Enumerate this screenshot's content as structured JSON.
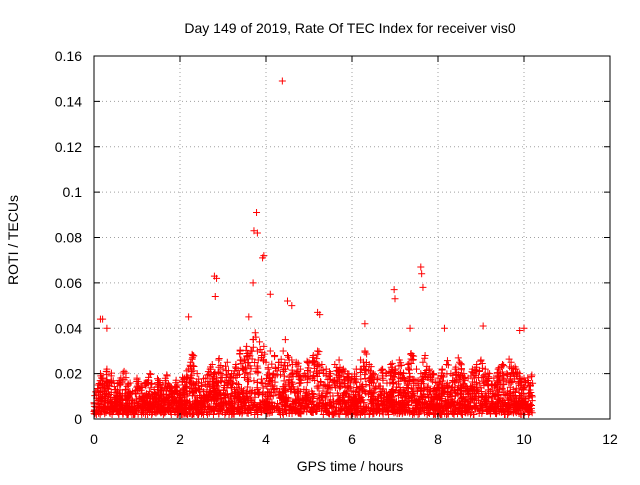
{
  "chart_data": {
    "type": "scatter",
    "title": "Day 149 of 2019, Rate Of TEC Index for receiver vis0",
    "xlabel": "GPS time / hours",
    "ylabel": "ROTI / TECUs",
    "xlim": [
      0,
      12
    ],
    "ylim": [
      0,
      0.16
    ],
    "x_ticks": [
      0,
      2,
      4,
      6,
      8,
      10,
      12
    ],
    "x_tick_labels": [
      "0",
      "2",
      "4",
      "6",
      "8",
      "10",
      "12"
    ],
    "y_ticks": [
      0,
      0.02,
      0.04,
      0.06,
      0.08,
      0.1,
      0.12,
      0.14,
      0.16
    ],
    "y_tick_labels": [
      "0",
      "0.02",
      "0.04",
      "0.06",
      "0.08",
      "0.1",
      "0.12",
      "0.14",
      "0.16"
    ],
    "grid": true,
    "marker": "+",
    "colors": {
      "series": "#ff0000",
      "axes": "#000000",
      "grid": "#a0a0a0",
      "background": "#ffffff"
    },
    "series": [
      {
        "name": "vis0",
        "description": "Dense band of ROTI values mostly 0.002-0.03 TECUs from 0 to ~10.2 h, with excursions listed below",
        "x": [
          0.05,
          0.1,
          0.15,
          0.2,
          0.25,
          0.3,
          0.35,
          0.4,
          0.5,
          0.6,
          0.7,
          0.8,
          0.9,
          1.0,
          1.1,
          1.2,
          1.3,
          1.4,
          1.5,
          1.6,
          1.7,
          1.8,
          1.9,
          2.0,
          2.1,
          2.2,
          2.25,
          2.3,
          2.4,
          2.5,
          2.6,
          2.7,
          2.75,
          2.8,
          2.85,
          2.9,
          3.0,
          3.1,
          3.2,
          3.3,
          3.4,
          3.5,
          3.55,
          3.6,
          3.65,
          3.7,
          3.75,
          3.8,
          3.82,
          3.85,
          3.9,
          3.95,
          4.0,
          4.05,
          4.1,
          4.2,
          4.3,
          4.4,
          4.45,
          4.5,
          4.6,
          4.7,
          4.8,
          4.9,
          5.0,
          5.1,
          5.2,
          5.3,
          5.4,
          5.5,
          5.6,
          5.7,
          5.8,
          5.9,
          6.0,
          6.1,
          6.2,
          6.3,
          6.4,
          6.5,
          6.6,
          6.7,
          6.8,
          6.9,
          7.0,
          7.1,
          7.2,
          7.3,
          7.4,
          7.5,
          7.6,
          7.65,
          7.7,
          7.8,
          7.9,
          8.0,
          8.1,
          8.2,
          8.3,
          8.4,
          8.5,
          8.6,
          8.7,
          8.8,
          8.9,
          9.0,
          9.1,
          9.2,
          9.3,
          9.4,
          9.5,
          9.6,
          9.7,
          9.8,
          9.9,
          10.0,
          10.1,
          10.15,
          4.38,
          3.78,
          3.8,
          3.72,
          3.92,
          3.95,
          2.8,
          2.85,
          2.82,
          7.6,
          7.62,
          7.65,
          6.98,
          7.0,
          0.15,
          0.2,
          0.3,
          2.2,
          5.2,
          5.25,
          6.3,
          7.35,
          8.15,
          9.05,
          9.9,
          10.0,
          3.6,
          3.7,
          4.1,
          4.5,
          4.6,
          0.1,
          0.5,
          1.0,
          1.5,
          2.0,
          2.5,
          3.0,
          3.5,
          4.0,
          4.5,
          5.0,
          5.5,
          6.0,
          6.5,
          7.0,
          7.5,
          8.0,
          8.5,
          9.0,
          9.5,
          10.0,
          0.3,
          0.8,
          1.3,
          1.8,
          2.3,
          2.8,
          3.3,
          3.8,
          4.3,
          4.8,
          5.3,
          5.8,
          6.3,
          6.8,
          7.3,
          7.8,
          8.3,
          8.8,
          9.3,
          9.8,
          8.05
        ],
        "y": [
          0.012,
          0.015,
          0.02,
          0.018,
          0.014,
          0.022,
          0.016,
          0.019,
          0.013,
          0.017,
          0.021,
          0.015,
          0.012,
          0.018,
          0.014,
          0.016,
          0.02,
          0.013,
          0.017,
          0.015,
          0.019,
          0.014,
          0.016,
          0.012,
          0.018,
          0.022,
          0.025,
          0.028,
          0.02,
          0.016,
          0.018,
          0.022,
          0.024,
          0.02,
          0.018,
          0.026,
          0.022,
          0.025,
          0.02,
          0.024,
          0.03,
          0.026,
          0.032,
          0.028,
          0.03,
          0.035,
          0.038,
          0.03,
          0.026,
          0.034,
          0.028,
          0.032,
          0.025,
          0.022,
          0.03,
          0.028,
          0.025,
          0.03,
          0.035,
          0.028,
          0.026,
          0.024,
          0.022,
          0.02,
          0.025,
          0.028,
          0.03,
          0.024,
          0.022,
          0.02,
          0.024,
          0.026,
          0.022,
          0.02,
          0.018,
          0.022,
          0.026,
          0.03,
          0.024,
          0.02,
          0.018,
          0.022,
          0.02,
          0.024,
          0.022,
          0.026,
          0.02,
          0.024,
          0.028,
          0.022,
          0.02,
          0.025,
          0.028,
          0.022,
          0.02,
          0.018,
          0.022,
          0.024,
          0.02,
          0.022,
          0.025,
          0.02,
          0.018,
          0.022,
          0.024,
          0.026,
          0.022,
          0.02,
          0.018,
          0.022,
          0.024,
          0.02,
          0.025,
          0.022,
          0.02,
          0.018,
          0.016,
          0.015,
          0.149,
          0.091,
          0.082,
          0.083,
          0.071,
          0.072,
          0.063,
          0.062,
          0.054,
          0.067,
          0.064,
          0.058,
          0.057,
          0.053,
          0.044,
          0.044,
          0.04,
          0.045,
          0.047,
          0.046,
          0.042,
          0.04,
          0.04,
          0.041,
          0.039,
          0.04,
          0.045,
          0.06,
          0.055,
          0.052,
          0.05,
          0.008,
          0.006,
          0.007,
          0.005,
          0.006,
          0.008,
          0.007,
          0.009,
          0.006,
          0.008,
          0.007,
          0.006,
          0.008,
          0.007,
          0.006,
          0.008,
          0.005,
          0.007,
          0.006,
          0.008,
          0.007,
          0.01,
          0.011,
          0.009,
          0.01,
          0.012,
          0.011,
          0.012,
          0.013,
          0.011,
          0.012,
          0.01,
          0.011,
          0.012,
          0.01,
          0.011,
          0.012,
          0.01,
          0.011,
          0.01,
          0.012,
          0.002
        ]
      }
    ]
  }
}
